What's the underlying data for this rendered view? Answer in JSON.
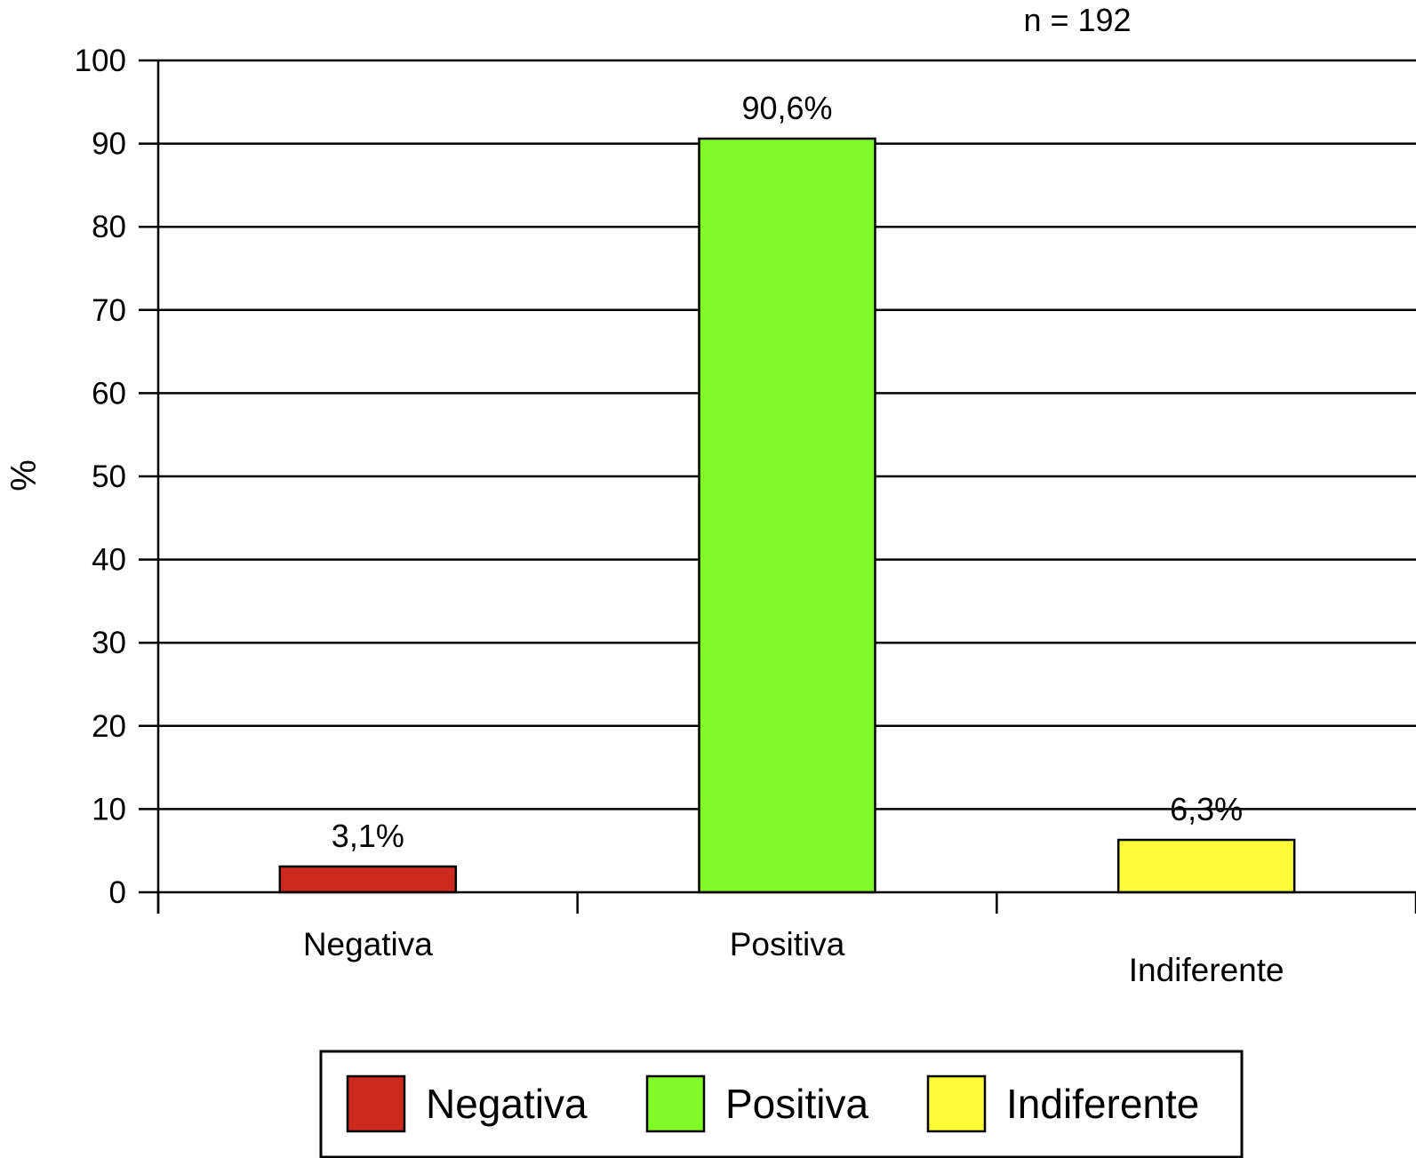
{
  "chart_data": {
    "type": "bar",
    "annotation": "n = 192",
    "ylabel": "%",
    "xlabel": "",
    "ylim": [
      0,
      100
    ],
    "yticks": [
      0,
      10,
      20,
      30,
      40,
      50,
      60,
      70,
      80,
      90,
      100
    ],
    "grid": true,
    "categories": [
      "Negativa",
      "Positiva",
      "Indiferente"
    ],
    "values": [
      3.1,
      90.6,
      6.3
    ],
    "value_labels": [
      "3,1%",
      "90,6%",
      "6,3%"
    ],
    "colors": [
      "#cc2a1e",
      "#82fa2a",
      "#fbfb37"
    ],
    "legend": {
      "position": "bottom",
      "entries": [
        "Negativa",
        "Positiva",
        "Indiferente"
      ]
    }
  }
}
